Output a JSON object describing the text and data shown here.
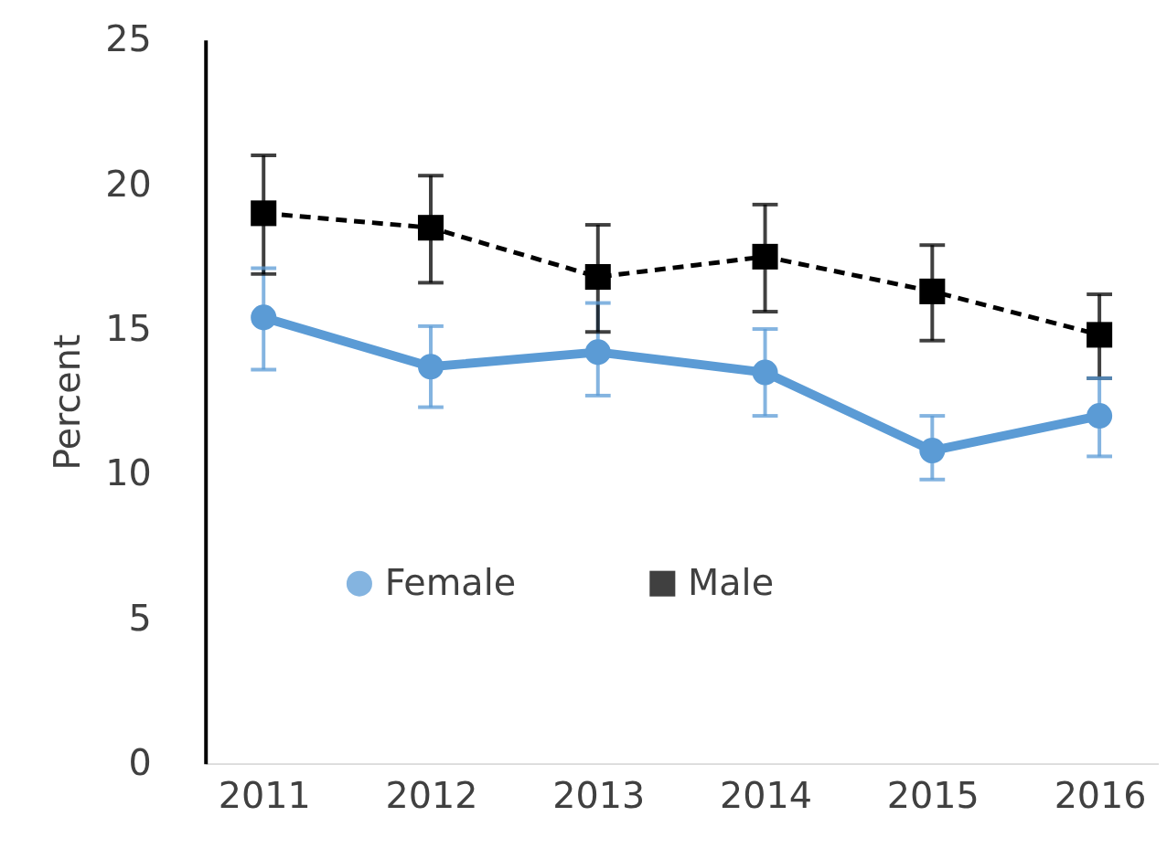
{
  "chart_data": {
    "type": "line",
    "ylabel": "Percent",
    "categories": [
      "2011",
      "2012",
      "2013",
      "2014",
      "2015",
      "2016"
    ],
    "ylim": [
      0,
      25
    ],
    "yticks": [
      0,
      5,
      10,
      15,
      20,
      25
    ],
    "grid": false,
    "legend": "bottom",
    "series": [
      {
        "name": "Female",
        "color": "#5b9bd5",
        "marker": "circle",
        "line_style": "solid",
        "values": [
          15.4,
          13.7,
          14.2,
          13.5,
          10.8,
          12.0
        ],
        "errors": [
          [
            13.6,
            17.1
          ],
          [
            12.3,
            15.1
          ],
          [
            12.7,
            15.9
          ],
          [
            12.0,
            15.0
          ],
          [
            9.8,
            12.0
          ],
          [
            10.6,
            13.3
          ]
        ]
      },
      {
        "name": "Male",
        "color": "#000000",
        "marker": "square",
        "line_style": "dashed",
        "values": [
          19.0,
          18.5,
          16.8,
          17.5,
          16.3,
          14.8
        ],
        "errors": [
          [
            16.9,
            21.0
          ],
          [
            16.6,
            20.3
          ],
          [
            14.9,
            18.6
          ],
          [
            15.6,
            19.3
          ],
          [
            14.6,
            17.9
          ],
          [
            13.3,
            16.2
          ]
        ]
      }
    ]
  }
}
